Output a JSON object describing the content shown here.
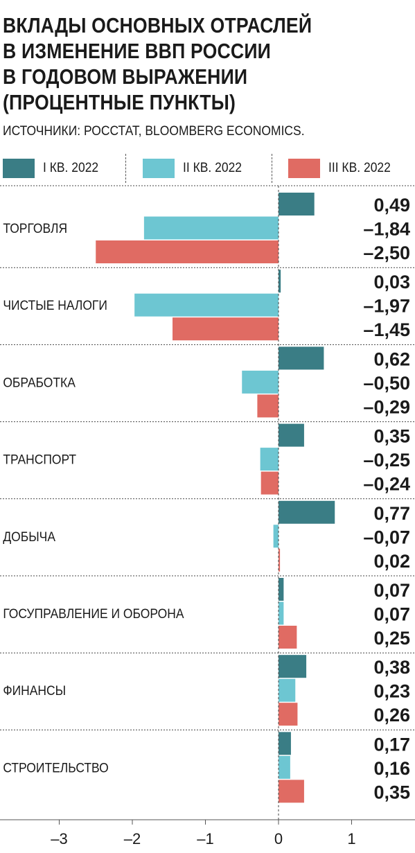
{
  "title_lines": [
    "ВКЛАДЫ ОСНОВНЫХ ОТРАСЛЕЙ",
    "В ИЗМЕНЕНИЕ ВВП РОССИИ",
    "В ГОДОВОМ ВЫРАЖЕНИИ",
    "(ПРОЦЕНТНЫЕ ПУНКТЫ)"
  ],
  "source": "ИСТОЧНИКИ: РОССТАТ, BLOOMBERG ECONOMICS.",
  "colors": {
    "q1": "#3a7d85",
    "q2": "#6dc6d2",
    "q3": "#e06b63"
  },
  "chart_data": {
    "type": "bar",
    "orientation": "horizontal",
    "title": "ВКЛАДЫ ОСНОВНЫХ ОТРАСЛЕЙ В ИЗМЕНЕНИЕ ВВП РОССИИ В ГОДОВОМ ВЫРАЖЕНИИ (ПРОЦЕНТНЫЕ ПУНКТЫ)",
    "categories": [
      "ТОРГОВЛЯ",
      "ЧИСТЫЕ НАЛОГИ",
      "ОБРАБОТКА",
      "ТРАНСПОРТ",
      "ДОБЫЧА",
      "ГОСУПРАВЛЕНИЕ И ОБОРОНА",
      "ФИНАНСЫ",
      "СТРОИТЕЛЬСТВО"
    ],
    "series": [
      {
        "name": "I КВ. 2022",
        "values": [
          0.49,
          0.03,
          0.62,
          0.35,
          0.77,
          0.07,
          0.38,
          0.17
        ],
        "labels": [
          "0,49",
          "0,03",
          "0,62",
          "0,35",
          "0,77",
          "0,07",
          "0,38",
          "0,17"
        ]
      },
      {
        "name": "II КВ. 2022",
        "values": [
          -1.84,
          -1.97,
          -0.5,
          -0.25,
          -0.07,
          0.07,
          0.23,
          0.16
        ],
        "labels": [
          "–1,84",
          "–1,97",
          "–0,50",
          "–0,25",
          "–0,07",
          "0,07",
          "0,23",
          "0,16"
        ]
      },
      {
        "name": "III КВ. 2022",
        "values": [
          -2.5,
          -1.45,
          -0.29,
          -0.24,
          0.02,
          0.25,
          0.26,
          0.35
        ],
        "labels": [
          "–2,50",
          "–1,45",
          "–0,29",
          "–0,24",
          "0,02",
          "0,25",
          "0,26",
          "0,35"
        ]
      }
    ],
    "xlim": [
      -3.8,
      1.8
    ],
    "ticks": [
      -3,
      -2,
      -1,
      0,
      1
    ],
    "tick_labels": [
      "–3",
      "–2",
      "–1",
      "0",
      "1"
    ],
    "legend_position": "top",
    "grid": false
  }
}
